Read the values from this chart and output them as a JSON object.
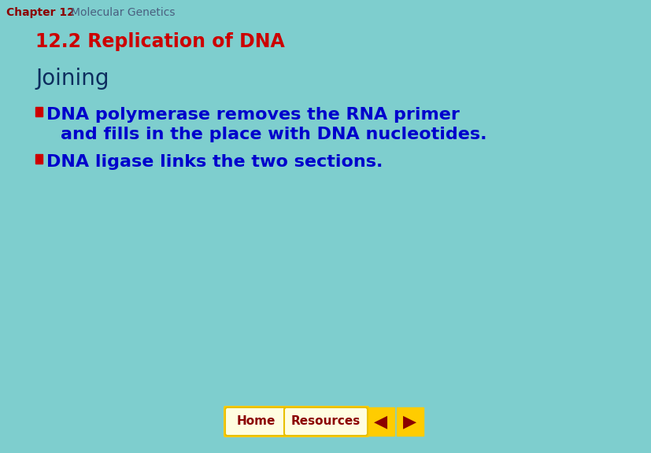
{
  "bg_color": "#7ecece",
  "header_chapter": "Chapter 12",
  "header_topic": "Molecular Genetics",
  "header_chapter_color": "#8b0000",
  "header_topic_color": "#4a6080",
  "subtitle": "12.2 Replication of DNA",
  "subtitle_color": "#cc0000",
  "subtitle_fontsize": 17,
  "section_title": "Joining",
  "section_title_color": "#0d2d5e",
  "section_title_fontsize": 20,
  "bullet_color": "#cc0000",
  "bullet_text_color": "#0000cc",
  "bullet_fontsize": 16,
  "bullet1_line1": "DNA polymerase removes the RNA primer",
  "bullet1_line2": "and fills in the place with DNA nucleotides.",
  "bullet2": "DNA ligase links the two sections.",
  "nav_color": "#ffcc00",
  "nav_text_color": "#8b0000",
  "nav_btn_facecolor": "#fffde0",
  "nav_buttons": [
    "Home",
    "Resources"
  ],
  "nav_fontsize": 11,
  "header_fontsize": 10
}
